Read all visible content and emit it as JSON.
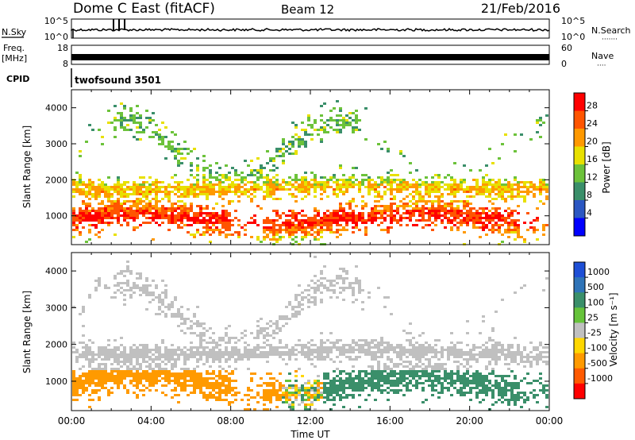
{
  "header": {
    "title": "Dome C East (fitACF)",
    "beam": "Beam 12",
    "date": "21/Feb/2016"
  },
  "aux_panels": {
    "nsky_label": "N.Sky",
    "nsearch_label": "N.Search",
    "nsearch_dots": "·······",
    "noise_ticks": [
      "10^5",
      "10^0"
    ],
    "freq_label_1": "Freq.",
    "freq_label_2": "[MHz]",
    "freq_ticks": [
      "18",
      "8"
    ],
    "nave_label": "Nave",
    "nave_dots": "····",
    "nave_ticks": [
      "60",
      "0"
    ],
    "cpid_label": "CPID",
    "cpid_value": "twofsound 3501"
  },
  "colors": {
    "power": [
      "#0000ff",
      "#2b57c2",
      "#3a8f6a",
      "#6cc23a",
      "#e8e000",
      "#ff9900",
      "#ff5500",
      "#ff0000"
    ],
    "velocity": [
      "#1e4fd6",
      "#2f74b8",
      "#3a8f6a",
      "#66c33a",
      "#c0c0c0",
      "#ffd700",
      "#ff9a00",
      "#ff5a00",
      "#ff0000"
    ]
  },
  "chart_data": [
    {
      "type": "heatmap",
      "name": "Power",
      "ylabel": "Slant Range [km]",
      "ylim": [
        200,
        4500
      ],
      "yticks": [
        "1000",
        "2000",
        "3000",
        "4000"
      ],
      "xlim_hours": [
        0,
        24
      ],
      "colorbar": {
        "label": "Power [dB]",
        "range": [
          0,
          32
        ],
        "ticks": [
          "4",
          "8",
          "12",
          "16",
          "20",
          "24",
          "28"
        ]
      },
      "features": [
        {
          "band_km": [
            1550,
            2100
          ],
          "time_h": [
            0,
            24
          ],
          "dominant_dB": "16-28"
        },
        {
          "band_km": [
            500,
            1300
          ],
          "time_h": [
            0,
            8
          ],
          "dominant_dB": "20-32"
        },
        {
          "band_km": [
            400,
            1600
          ],
          "time_h": [
            9,
            22
          ],
          "dominant_dB": "20-32"
        },
        {
          "band_km": [
            2400,
            4500
          ],
          "time_h": [
            2,
            14
          ],
          "dominant_dB": "8-20"
        }
      ]
    },
    {
      "type": "heatmap",
      "name": "Velocity",
      "ylabel": "Slant Range [km]",
      "xlabel": "Time UT",
      "ylim": [
        200,
        4500
      ],
      "yticks": [
        "1000",
        "2000",
        "3000",
        "4000"
      ],
      "xticks": [
        "00:00",
        "04:00",
        "08:00",
        "12:00",
        "16:00",
        "20:00",
        "00:00"
      ],
      "colorbar": {
        "label": "Velocity [m s⁻¹]",
        "ticks": [
          "1000",
          "500",
          "100",
          "25",
          "-25",
          "-100",
          "-500",
          "-1000"
        ]
      },
      "features": [
        {
          "band_km": [
            1300,
            2300
          ],
          "time_h": [
            0,
            24
          ],
          "dominant": "-25 to 25 (grey)"
        },
        {
          "band_km": [
            500,
            1300
          ],
          "time_h": [
            0,
            10.5
          ],
          "dominant": "-500 to -100 (orange)"
        },
        {
          "band_km": [
            500,
            1500
          ],
          "time_h": [
            12.5,
            24
          ],
          "dominant": "100 to 500 (green)"
        }
      ]
    }
  ]
}
